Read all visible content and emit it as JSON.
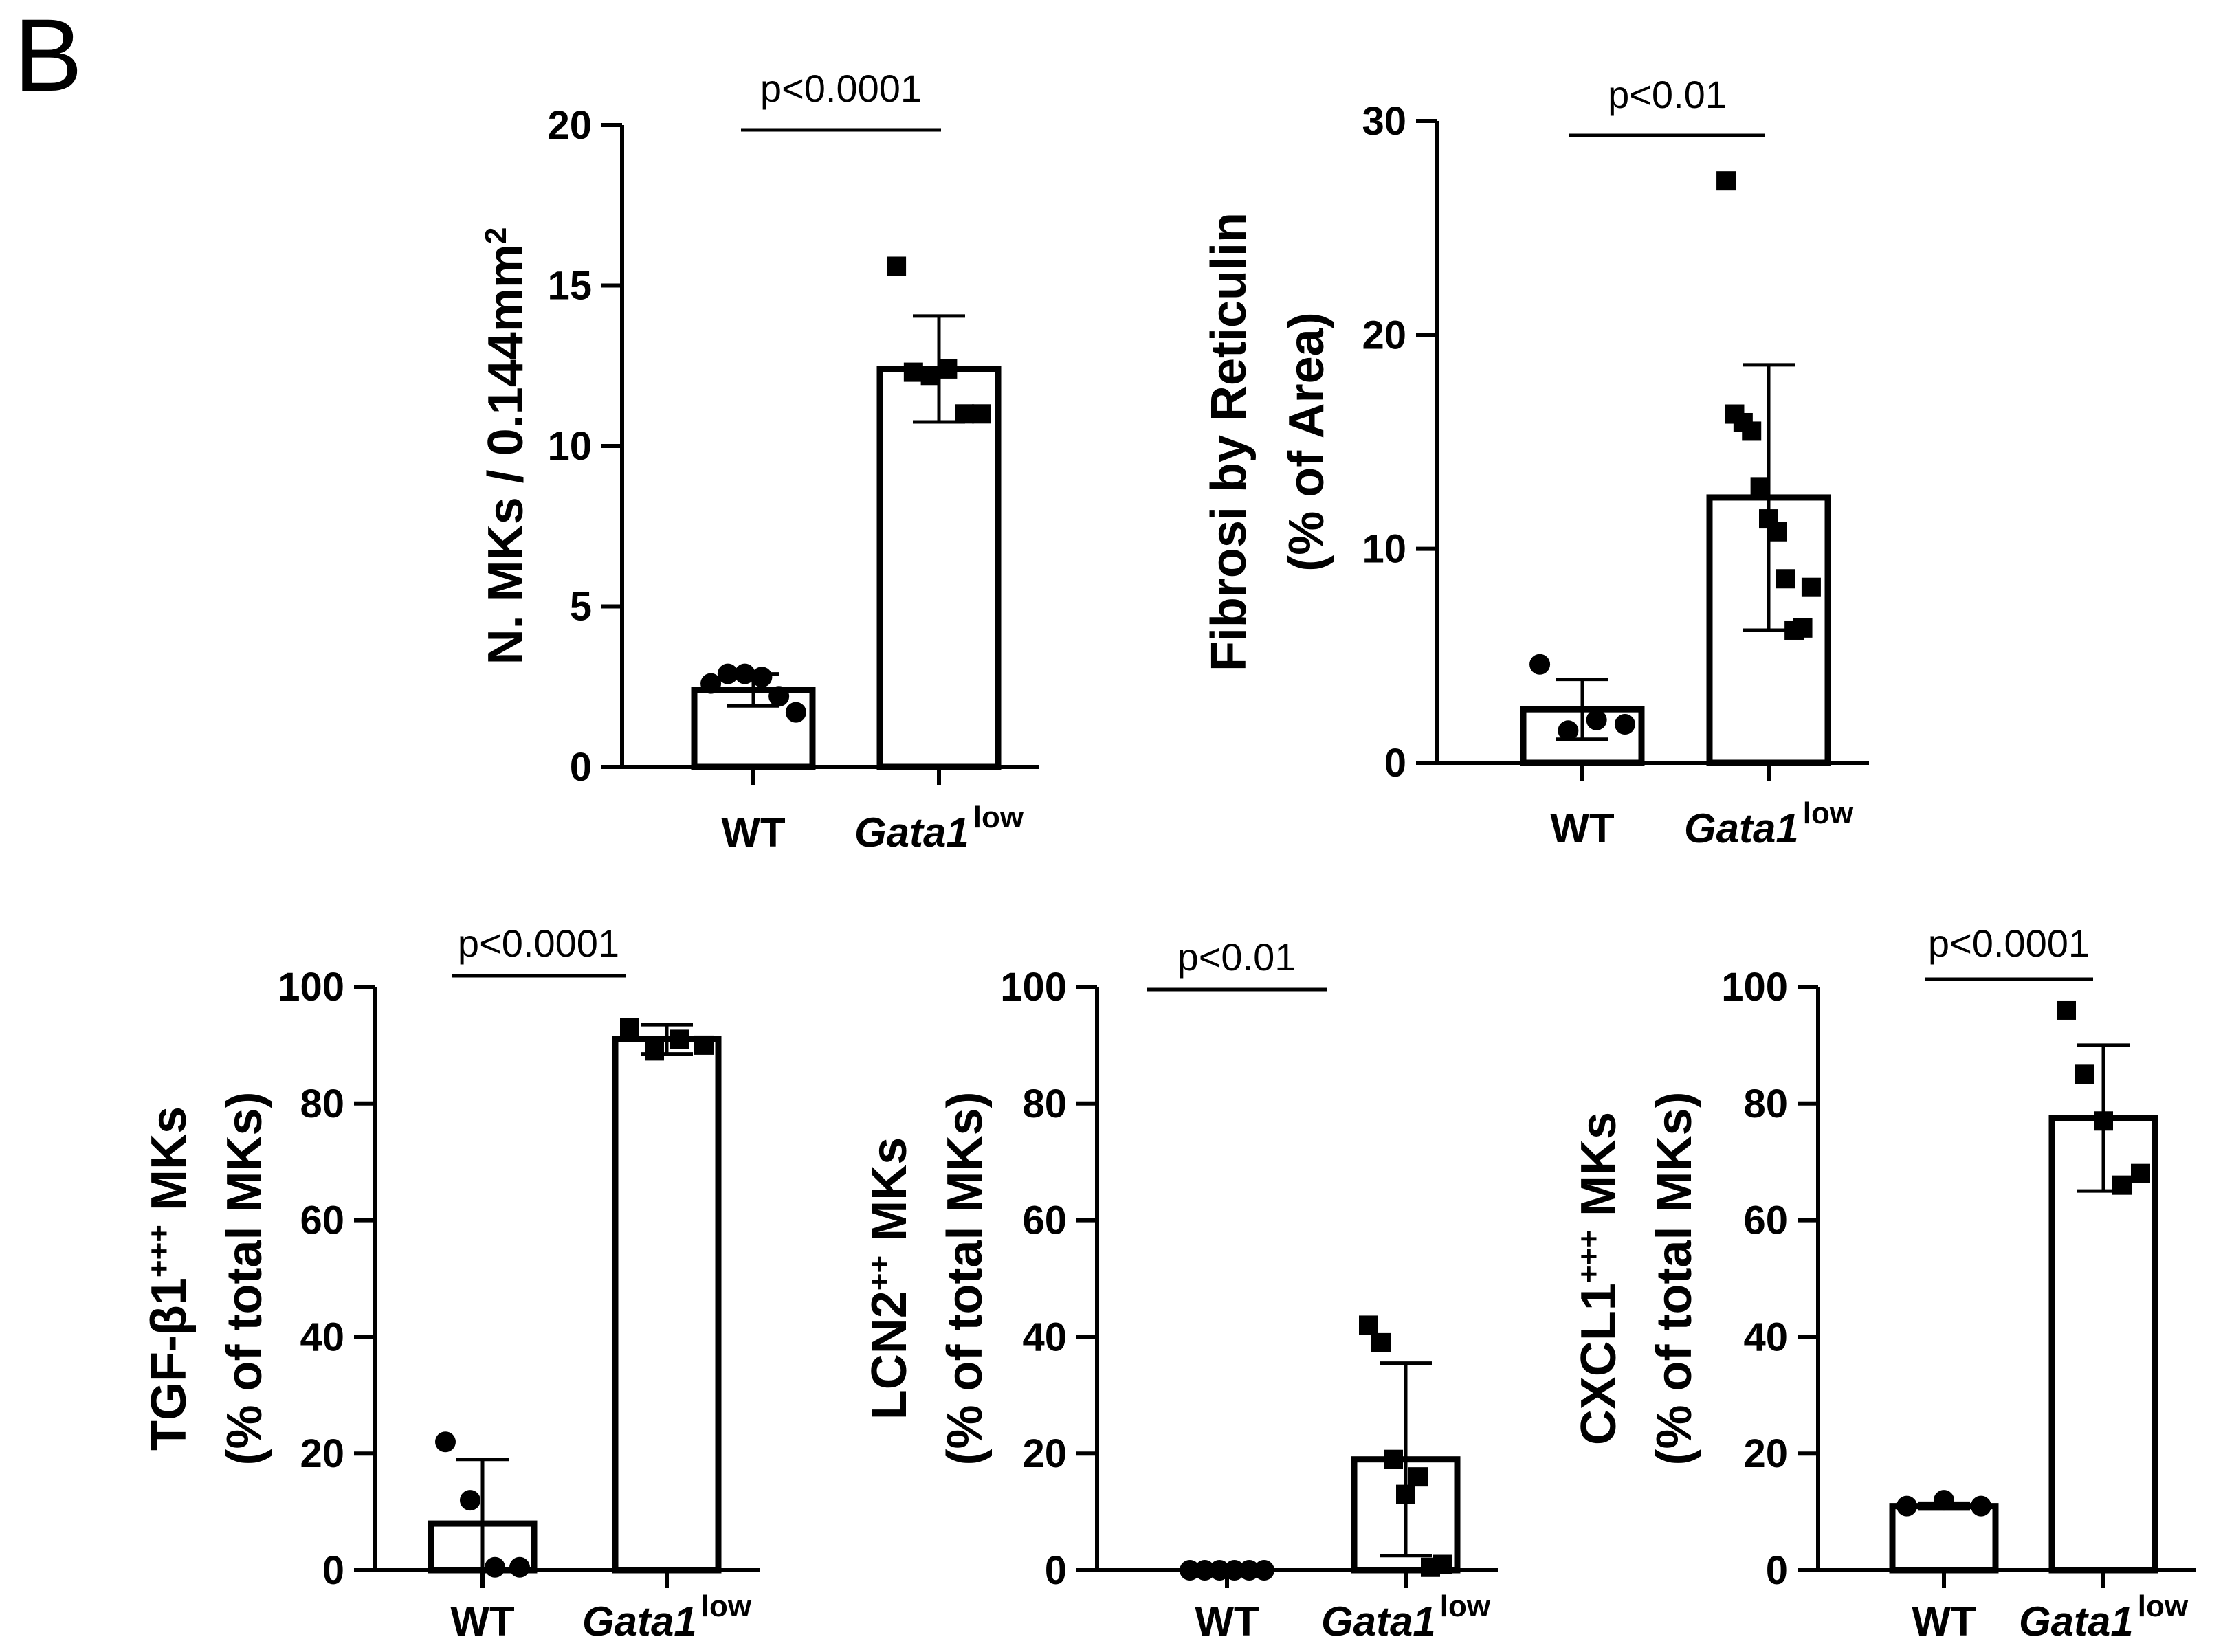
{
  "figure": {
    "panel_label": "B"
  },
  "chart_data": [
    {
      "id": "mks",
      "type": "bar",
      "categories": [
        "WT",
        "Gata1"
      ],
      "category_superscripts": [
        "",
        "low"
      ],
      "category_italic": [
        false,
        true
      ],
      "values": [
        2.4,
        12.4
      ],
      "error": [
        0.5,
        1.65
      ],
      "points": [
        [
          2.6,
          2.9,
          2.9,
          2.8,
          2.2,
          1.7
        ],
        [
          15.6,
          12.3,
          12.2,
          12.4,
          11.0,
          11.0
        ]
      ],
      "markers": [
        "circle",
        "square"
      ],
      "ylim": [
        0,
        20
      ],
      "yticks": [
        "0",
        "5",
        "10",
        "15",
        "20"
      ],
      "ylabel": [
        "N. MKs / 0.144mm2"
      ],
      "significance": "p<0.0001"
    },
    {
      "id": "fibrosis",
      "type": "bar",
      "categories": [
        "WT",
        "Gata1"
      ],
      "category_superscripts": [
        "",
        "low"
      ],
      "category_italic": [
        false,
        true
      ],
      "values": [
        2.5,
        12.4
      ],
      "error": [
        1.4,
        6.2
      ],
      "points": [
        [
          4.6,
          1.5,
          2.0,
          1.8
        ],
        [
          27.2,
          16.3,
          15.9,
          15.5,
          12.9,
          11.4,
          10.8,
          8.6,
          6.2,
          6.3,
          8.2
        ]
      ],
      "markers": [
        "circle",
        "square"
      ],
      "ylim": [
        0,
        30
      ],
      "yticks": [
        "0",
        "10",
        "20",
        "30"
      ],
      "ylabel": [
        "Fibrosi by Reticulin",
        "(% of Area)"
      ],
      "significance": "p<0.01"
    },
    {
      "id": "tgfb1",
      "type": "bar",
      "categories": [
        "WT",
        "Gata1"
      ],
      "category_superscripts": [
        "",
        "low"
      ],
      "category_italic": [
        false,
        true
      ],
      "values": [
        8,
        91
      ],
      "error": [
        11,
        2.5
      ],
      "points": [
        [
          22,
          12,
          0.5,
          0.5
        ],
        [
          93,
          89,
          91,
          90
        ]
      ],
      "markers": [
        "circle",
        "square"
      ],
      "ylim": [
        0,
        100
      ],
      "yticks": [
        "0",
        "20",
        "40",
        "60",
        "80",
        "100"
      ],
      "ylabel": [
        "TGF-β1+++ MKs",
        "(% of total MKs)"
      ],
      "significance": "p<0.0001"
    },
    {
      "id": "lcn2",
      "type": "bar",
      "categories": [
        "WT",
        "Gata1"
      ],
      "category_superscripts": [
        "",
        "low"
      ],
      "category_italic": [
        false,
        true
      ],
      "values": [
        0,
        19
      ],
      "error": [
        0,
        16.5
      ],
      "points": [
        [
          0,
          0,
          0,
          0,
          0,
          0
        ],
        [
          42,
          39,
          19,
          13,
          16,
          0.5,
          1
        ]
      ],
      "markers": [
        "circle",
        "square"
      ],
      "ylim": [
        0,
        100
      ],
      "yticks": [
        "0",
        "20",
        "40",
        "60",
        "80",
        "100"
      ],
      "ylabel": [
        "LCN2++ MKs",
        "(% of total MKs)"
      ],
      "significance": "p<0.01"
    },
    {
      "id": "cxcl1",
      "type": "bar",
      "categories": [
        "WT",
        "Gata1"
      ],
      "category_superscripts": [
        "",
        "low"
      ],
      "category_italic": [
        false,
        true
      ],
      "values": [
        11,
        77.5
      ],
      "error": [
        0.5,
        12.5
      ],
      "points": [
        [
          11,
          12,
          11
        ],
        [
          96,
          85,
          77,
          66,
          68
        ]
      ],
      "markers": [
        "circle",
        "square"
      ],
      "ylim": [
        0,
        100
      ],
      "yticks": [
        "0",
        "20",
        "40",
        "60",
        "80",
        "100"
      ],
      "ylabel": [
        "CXCL1+++ MKs",
        "(% of total MKs)"
      ],
      "significance": "p<0.0001"
    }
  ]
}
